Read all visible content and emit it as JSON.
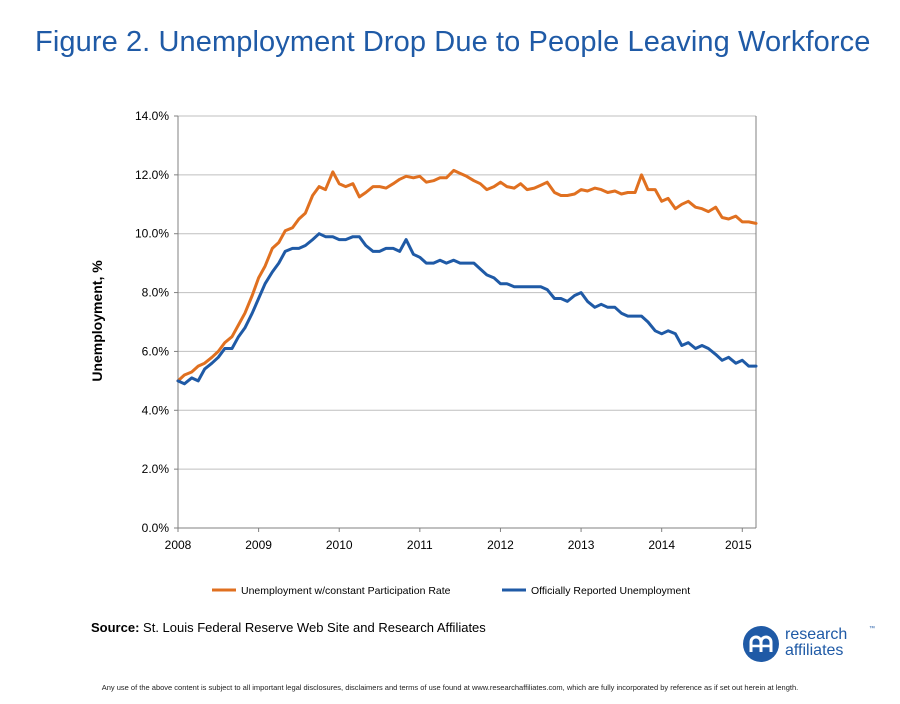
{
  "title": "Figure 2. Unemployment Drop Due to People Leaving Workforce",
  "source_label": "Source:",
  "source_text": "St. Louis Federal Reserve Web Site and Research Affiliates",
  "disclaimer": "Any use of the above content is subject to all important legal disclosures, disclaimers and terms of use found at www.researchaffiliates.com, which are fully incorporated by reference as if set out herein at length.",
  "logo": {
    "line1": "research",
    "line2": "affiliates",
    "tm": "™",
    "icon": "research-affiliates-logo-icon"
  },
  "colors": {
    "title": "#1f5aa6",
    "constant_rate": "#e07020",
    "official": "#1f5aa6",
    "grid": "#bfbfbf"
  },
  "chart_data": {
    "type": "line",
    "title": "Figure 2. Unemployment Drop Due to People Leaving Workforce",
    "xlabel": "",
    "ylabel": "Unemployment, %",
    "xlim": [
      2008.0,
      2015.17
    ],
    "ylim": [
      0,
      14
    ],
    "x_ticks": [
      "2008",
      "2009",
      "2010",
      "2011",
      "2012",
      "2013",
      "2014",
      "2015"
    ],
    "y_ticks": [
      "0.0%",
      "2.0%",
      "4.0%",
      "6.0%",
      "8.0%",
      "10.0%",
      "12.0%",
      "14.0%"
    ],
    "grid": true,
    "legend_position": "bottom",
    "x": [
      2008.0,
      2008.08,
      2008.17,
      2008.25,
      2008.33,
      2008.42,
      2008.5,
      2008.58,
      2008.67,
      2008.75,
      2008.83,
      2008.92,
      2009.0,
      2009.08,
      2009.17,
      2009.25,
      2009.33,
      2009.42,
      2009.5,
      2009.58,
      2009.67,
      2009.75,
      2009.83,
      2009.92,
      2010.0,
      2010.08,
      2010.17,
      2010.25,
      2010.33,
      2010.42,
      2010.5,
      2010.58,
      2010.67,
      2010.75,
      2010.83,
      2010.92,
      2011.0,
      2011.08,
      2011.17,
      2011.25,
      2011.33,
      2011.42,
      2011.5,
      2011.58,
      2011.67,
      2011.75,
      2011.83,
      2011.92,
      2012.0,
      2012.08,
      2012.17,
      2012.25,
      2012.33,
      2012.42,
      2012.5,
      2012.58,
      2012.67,
      2012.75,
      2012.83,
      2012.92,
      2013.0,
      2013.08,
      2013.17,
      2013.25,
      2013.33,
      2013.42,
      2013.5,
      2013.58,
      2013.67,
      2013.75,
      2013.83,
      2013.92,
      2014.0,
      2014.08,
      2014.17,
      2014.25,
      2014.33,
      2014.42,
      2014.5,
      2014.58,
      2014.67,
      2014.75,
      2014.83,
      2014.92,
      2015.0,
      2015.08,
      2015.17
    ],
    "series": [
      {
        "name": "Unemployment w/constant Participation Rate",
        "values": [
          5.0,
          5.2,
          5.3,
          5.5,
          5.6,
          5.8,
          6.0,
          6.3,
          6.5,
          6.9,
          7.3,
          7.9,
          8.5,
          8.9,
          9.5,
          9.7,
          10.1,
          10.2,
          10.5,
          10.7,
          11.3,
          11.6,
          11.5,
          12.1,
          11.7,
          11.6,
          11.7,
          11.25,
          11.4,
          11.6,
          11.6,
          11.55,
          11.7,
          11.85,
          11.95,
          11.9,
          11.95,
          11.75,
          11.8,
          11.9,
          11.9,
          12.15,
          12.05,
          11.95,
          11.8,
          11.7,
          11.5,
          11.6,
          11.75,
          11.6,
          11.55,
          11.7,
          11.5,
          11.55,
          11.65,
          11.75,
          11.4,
          11.3,
          11.3,
          11.35,
          11.5,
          11.45,
          11.55,
          11.5,
          11.4,
          11.45,
          11.35,
          11.4,
          11.4,
          12.0,
          11.5,
          11.5,
          11.1,
          11.2,
          10.85,
          11.0,
          11.1,
          10.9,
          10.85,
          10.75,
          10.9,
          10.55,
          10.5,
          10.6,
          10.4,
          10.4,
          10.35
        ]
      },
      {
        "name": "Officially Reported Unemployment",
        "values": [
          5.0,
          4.9,
          5.1,
          5.0,
          5.4,
          5.6,
          5.8,
          6.1,
          6.1,
          6.5,
          6.8,
          7.3,
          7.8,
          8.3,
          8.7,
          9.0,
          9.4,
          9.5,
          9.5,
          9.6,
          9.8,
          10.0,
          9.9,
          9.9,
          9.8,
          9.8,
          9.9,
          9.9,
          9.6,
          9.4,
          9.4,
          9.5,
          9.5,
          9.4,
          9.8,
          9.3,
          9.2,
          9.0,
          9.0,
          9.1,
          9.0,
          9.1,
          9.0,
          9.0,
          9.0,
          8.8,
          8.6,
          8.5,
          8.3,
          8.3,
          8.2,
          8.2,
          8.2,
          8.2,
          8.2,
          8.1,
          7.8,
          7.8,
          7.7,
          7.9,
          8.0,
          7.7,
          7.5,
          7.6,
          7.5,
          7.5,
          7.3,
          7.2,
          7.2,
          7.2,
          7.0,
          6.7,
          6.6,
          6.7,
          6.6,
          6.2,
          6.3,
          6.1,
          6.2,
          6.1,
          5.9,
          5.7,
          5.8,
          5.6,
          5.7,
          5.5,
          5.5
        ]
      }
    ]
  }
}
